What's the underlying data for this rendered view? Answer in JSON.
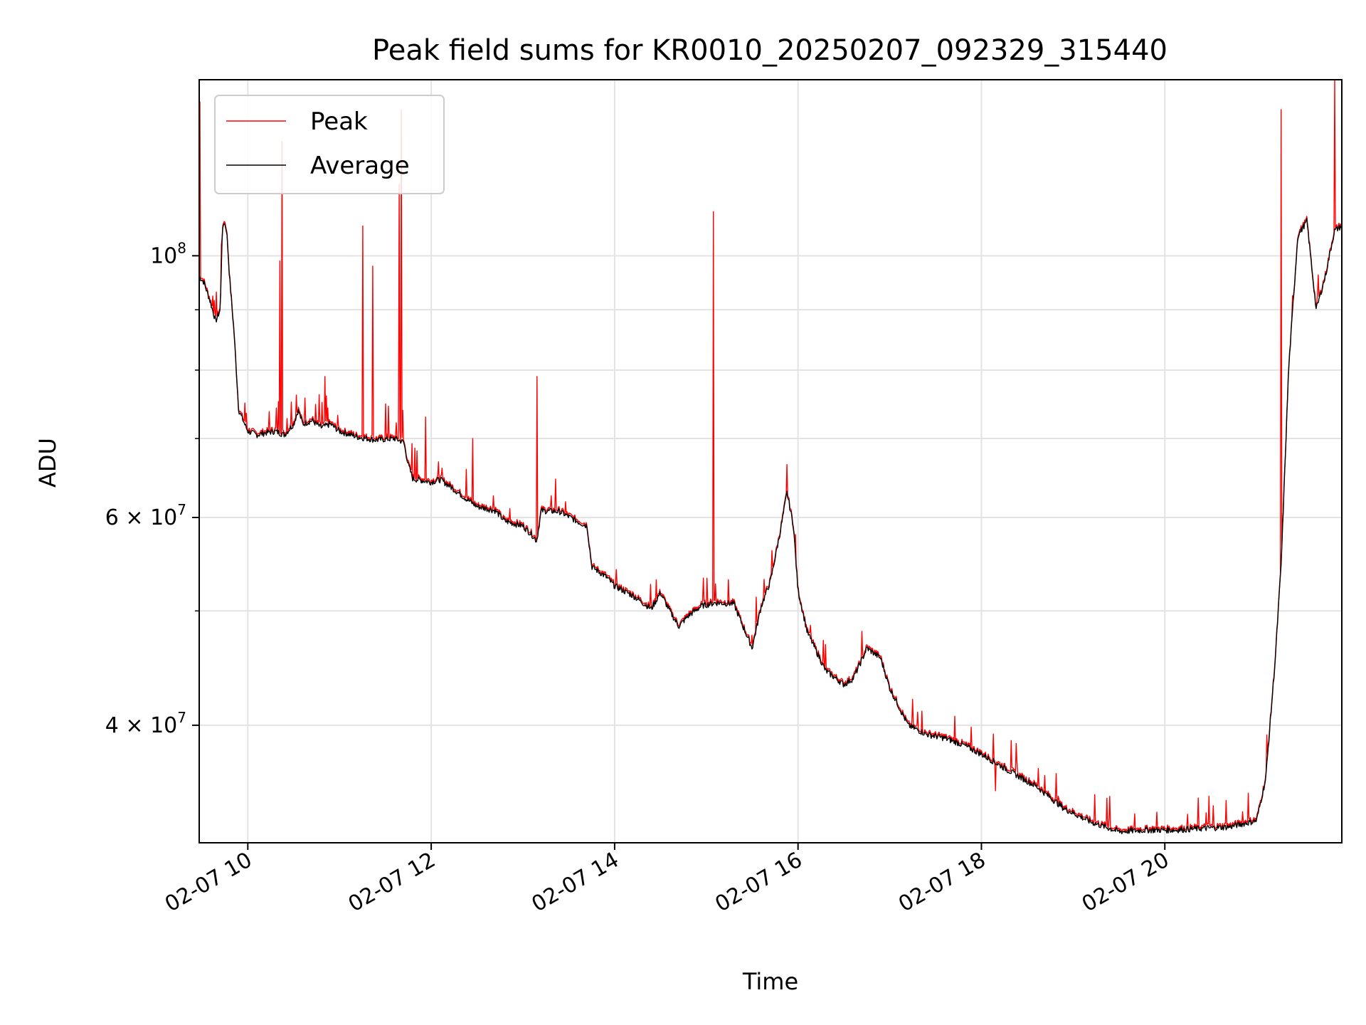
{
  "chart_data": {
    "type": "line",
    "title": "Peak field sums for KR0010_20250207_092329_315440",
    "xlabel": "Time",
    "ylabel": "ADU",
    "y_scale": "log",
    "xlim": [
      9.47,
      21.93
    ],
    "ylim": [
      31800000,
      141000000
    ],
    "x_unit": "hours (2025-02-07)",
    "x_ticks": [
      {
        "value": 10,
        "label": "02-07 10"
      },
      {
        "value": 12,
        "label": "02-07 12"
      },
      {
        "value": 14,
        "label": "02-07 14"
      },
      {
        "value": 16,
        "label": "02-07 16"
      },
      {
        "value": 18,
        "label": "02-07 18"
      },
      {
        "value": 20,
        "label": "02-07 20"
      }
    ],
    "y_major_ticks": [
      {
        "value": 100000000,
        "mant": "10",
        "exp": "8",
        "style": "pow"
      },
      {
        "value": 60000000,
        "mant": "6 × 10",
        "exp": "7",
        "style": "sci"
      },
      {
        "value": 40000000,
        "mant": "4 × 10",
        "exp": "7",
        "style": "sci"
      }
    ],
    "y_minor_gridlines": [
      50000000,
      70000000,
      80000000,
      90000000
    ],
    "grid": true,
    "legend": {
      "position": "top-left"
    },
    "series": [
      {
        "name": "Peak",
        "color": "#ff0000",
        "spikes": [
          [
            9.48,
            135000000
          ],
          [
            10.35,
            99000000
          ],
          [
            10.37,
            125000000
          ],
          [
            10.84,
            79000000
          ],
          [
            11.25,
            106000000
          ],
          [
            11.36,
            98000000
          ],
          [
            11.65,
            115000000
          ],
          [
            11.67,
            133000000
          ],
          [
            11.94,
            73000000
          ],
          [
            12.45,
            70000000
          ],
          [
            13.15,
            79000000
          ],
          [
            15.08,
            109000000
          ],
          [
            18.15,
            35200000
          ],
          [
            21.27,
            133000000
          ],
          [
            21.85,
            141000000
          ]
        ]
      },
      {
        "name": "Average",
        "color": "#000000",
        "points": [
          [
            9.47,
            96000000
          ],
          [
            9.52,
            95000000
          ],
          [
            9.58,
            92000000
          ],
          [
            9.65,
            88000000
          ],
          [
            9.7,
            90000000
          ],
          [
            9.72,
            104000000
          ],
          [
            9.74,
            107000000
          ],
          [
            9.77,
            105000000
          ],
          [
            9.8,
            96000000
          ],
          [
            9.85,
            86000000
          ],
          [
            9.9,
            74000000
          ],
          [
            10.0,
            71000000
          ],
          [
            10.1,
            70500000
          ],
          [
            10.2,
            70800000
          ],
          [
            10.3,
            71000000
          ],
          [
            10.4,
            70500000
          ],
          [
            10.5,
            72000000
          ],
          [
            10.55,
            74000000
          ],
          [
            10.6,
            72000000
          ],
          [
            10.7,
            72500000
          ],
          [
            10.8,
            71500000
          ],
          [
            10.9,
            72000000
          ],
          [
            11.0,
            71000000
          ],
          [
            11.2,
            70200000
          ],
          [
            11.4,
            69800000
          ],
          [
            11.6,
            70000000
          ],
          [
            11.7,
            69500000
          ],
          [
            11.75,
            66500000
          ],
          [
            11.8,
            64700000
          ],
          [
            11.9,
            64500000
          ],
          [
            12.0,
            64300000
          ],
          [
            12.1,
            64600000
          ],
          [
            12.2,
            63800000
          ],
          [
            12.35,
            62500000
          ],
          [
            12.5,
            61300000
          ],
          [
            12.7,
            60800000
          ],
          [
            12.8,
            59600000
          ],
          [
            13.0,
            59000000
          ],
          [
            13.1,
            58000000
          ],
          [
            13.15,
            57300000
          ],
          [
            13.2,
            60800000
          ],
          [
            13.4,
            60700000
          ],
          [
            13.6,
            59500000
          ],
          [
            13.7,
            59000000
          ],
          [
            13.75,
            54500000
          ],
          [
            13.9,
            53500000
          ],
          [
            14.0,
            52500000
          ],
          [
            14.2,
            51500000
          ],
          [
            14.4,
            50200000
          ],
          [
            14.5,
            51800000
          ],
          [
            14.6,
            50000000
          ],
          [
            14.7,
            48500000
          ],
          [
            14.8,
            49500000
          ],
          [
            14.95,
            50500000
          ],
          [
            15.1,
            50800000
          ],
          [
            15.3,
            50700000
          ],
          [
            15.4,
            48500000
          ],
          [
            15.5,
            46500000
          ],
          [
            15.6,
            50500000
          ],
          [
            15.7,
            53000000
          ],
          [
            15.8,
            58000000
          ],
          [
            15.88,
            63000000
          ],
          [
            15.95,
            59000000
          ],
          [
            16.0,
            52000000
          ],
          [
            16.1,
            48000000
          ],
          [
            16.3,
            44500000
          ],
          [
            16.5,
            43300000
          ],
          [
            16.6,
            43800000
          ],
          [
            16.7,
            45500000
          ],
          [
            16.75,
            46500000
          ],
          [
            16.8,
            46200000
          ],
          [
            16.9,
            45600000
          ],
          [
            17.0,
            43000000
          ],
          [
            17.2,
            40000000
          ],
          [
            17.4,
            39300000
          ],
          [
            17.6,
            39000000
          ],
          [
            17.8,
            38500000
          ],
          [
            18.0,
            37800000
          ],
          [
            18.3,
            36600000
          ],
          [
            18.6,
            35500000
          ],
          [
            18.9,
            34000000
          ],
          [
            19.2,
            33100000
          ],
          [
            19.5,
            32500000
          ],
          [
            19.8,
            32600000
          ],
          [
            20.1,
            32600000
          ],
          [
            20.4,
            32700000
          ],
          [
            20.7,
            32800000
          ],
          [
            21.0,
            33200000
          ],
          [
            21.1,
            36000000
          ],
          [
            21.2,
            45000000
          ],
          [
            21.27,
            55000000
          ],
          [
            21.35,
            80000000
          ],
          [
            21.45,
            104000000
          ],
          [
            21.55,
            107000000
          ],
          [
            21.65,
            90000000
          ],
          [
            21.75,
            96000000
          ],
          [
            21.85,
            105000000
          ],
          [
            21.93,
            106000000
          ]
        ]
      }
    ]
  }
}
